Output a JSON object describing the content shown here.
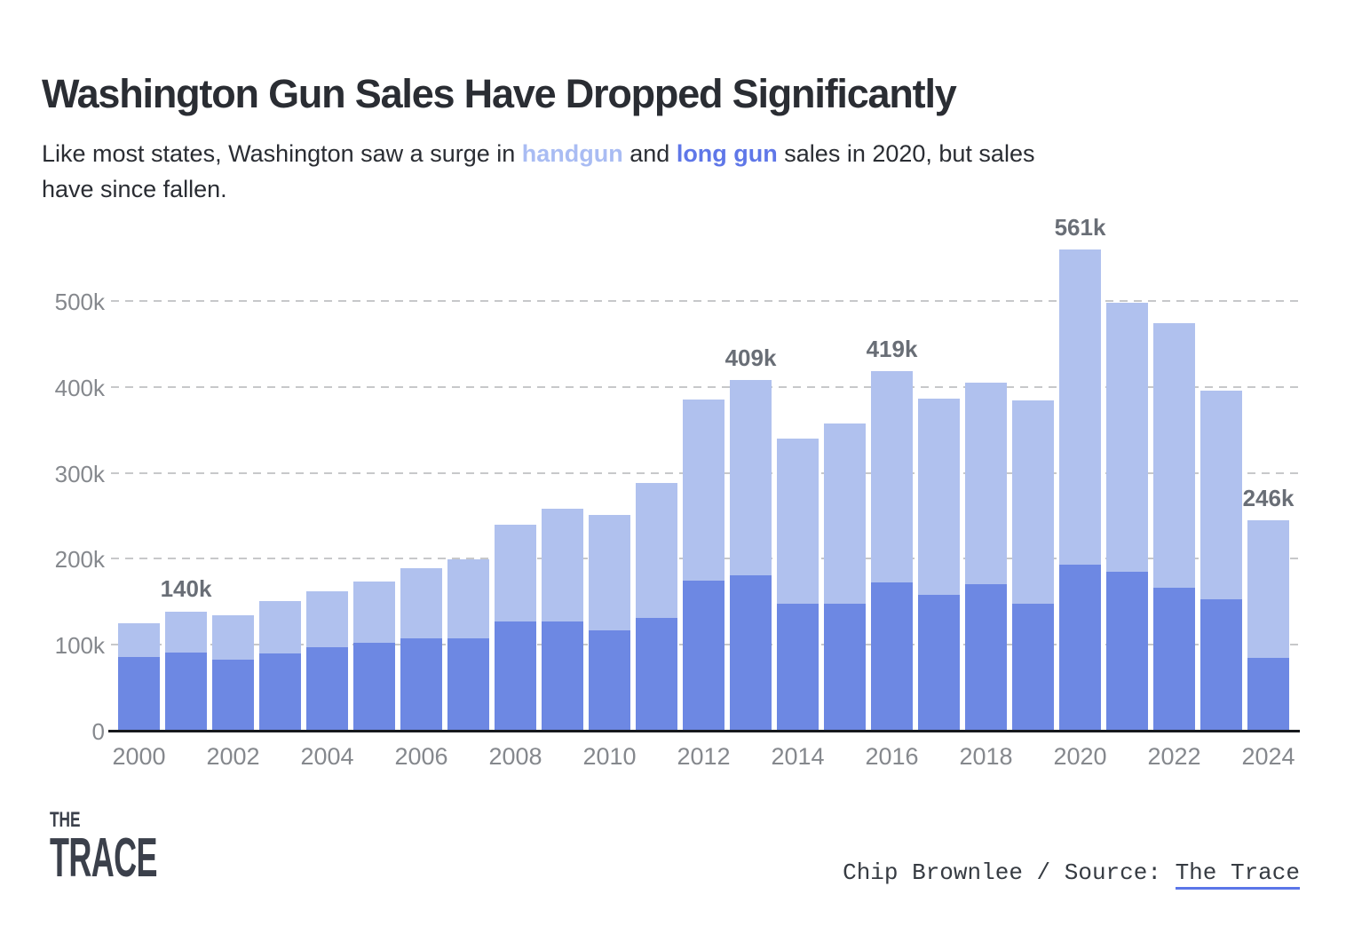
{
  "title": "Washington Gun Sales Have Dropped Significantly",
  "subtitle": {
    "prefix": "Like most states, Washington saw a surge in ",
    "handgun_word": "handgun",
    "middle": " and ",
    "long_gun_word": "long gun",
    "suffix_line1": " sales in 2020, but sales",
    "suffix_line2": "have since fallen."
  },
  "colors": {
    "handgun_light": "#b0c1ee",
    "long_gun_dark": "#6d88e3",
    "subtitle_handgun": "#a9bcf3",
    "subtitle_long_gun": "#5f77e8",
    "gridline": "#c7c8ca",
    "axis": "#17191d",
    "tick_text": "#85888d",
    "annotation_text": "#696e76"
  },
  "chart_data": {
    "type": "bar",
    "stacked": true,
    "units": "thousands of sales",
    "categories": [
      2000,
      2001,
      2002,
      2003,
      2004,
      2005,
      2006,
      2007,
      2008,
      2009,
      2010,
      2011,
      2012,
      2013,
      2014,
      2015,
      2016,
      2017,
      2018,
      2019,
      2020,
      2021,
      2022,
      2023,
      2024
    ],
    "series": [
      {
        "name": "long gun",
        "position": "bottom",
        "color": "#6d88e3",
        "values": [
          87,
          92,
          84,
          91,
          98,
          103,
          108,
          109,
          128,
          128,
          118,
          132,
          176,
          182,
          149,
          149,
          174,
          159,
          172,
          149,
          194,
          186,
          167,
          154,
          86
        ]
      },
      {
        "name": "handgun",
        "position": "top",
        "color": "#b0c1ee",
        "values": [
          39,
          48,
          51,
          61,
          65,
          72,
          82,
          91,
          113,
          131,
          134,
          157,
          210,
          227,
          192,
          210,
          245,
          228,
          234,
          236,
          367,
          313,
          308,
          243,
          160
        ]
      }
    ],
    "totals": [
      126,
      140,
      135,
      152,
      163,
      175,
      190,
      200,
      241,
      259,
      252,
      289,
      386,
      409,
      341,
      359,
      419,
      387,
      406,
      385,
      561,
      499,
      475,
      397,
      246
    ],
    "annotations": [
      {
        "year": 2001,
        "label": "140k"
      },
      {
        "year": 2013,
        "label": "409k"
      },
      {
        "year": 2016,
        "label": "419k"
      },
      {
        "year": 2020,
        "label": "561k"
      },
      {
        "year": 2024,
        "label": "246k"
      }
    ],
    "x_tick_labels": [
      "2000",
      "2002",
      "2004",
      "2006",
      "2008",
      "2010",
      "2012",
      "2014",
      "2016",
      "2018",
      "2020",
      "2022",
      "2024"
    ],
    "y_ticks": [
      "0",
      "100k",
      "200k",
      "300k",
      "400k",
      "500k"
    ],
    "ylim": [
      0,
      580
    ],
    "grid": "horizontal-dashed",
    "legend": "none (series referenced by colored words in subtitle)"
  },
  "footer": {
    "logo_line1": "THE",
    "logo_line2": "TRACE",
    "credit_prefix": "Chip Brownlee / Source: ",
    "credit_link": "The Trace"
  }
}
